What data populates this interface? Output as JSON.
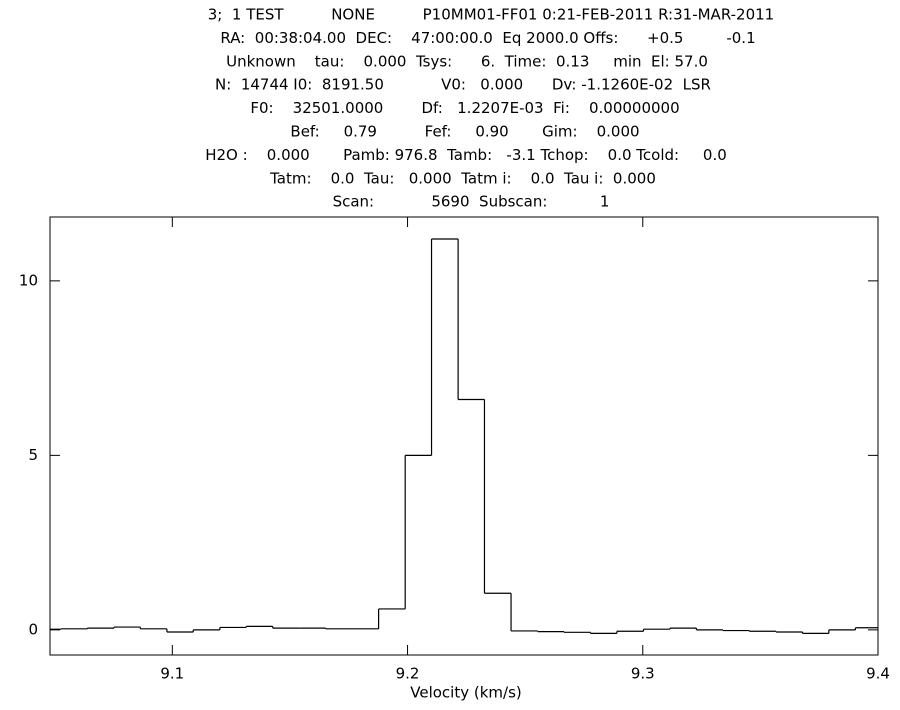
{
  "chart_data": {
    "type": "histogram",
    "annotations": [
      "3;  1 TEST          NONE          P10MM01-FF01 0:21-FEB-2011 R:31-MAR-2011",
      "RA:  00:38:04.00  DEC:    47:00:00.0  Eq 2000.0 Offs:      +0.5         -0.1",
      "Unknown    tau:    0.000  Tsys:      6.  Time:  0.13     min  El: 57.0",
      "N:  14744 I0:  8191.50            V0:   0.000      Dv: -1.1260E-02  LSR",
      "F0:    32501.0000        Df:   1.2207E-03  Fi:    0.00000000",
      "Bef:     0.79          Fef:     0.90       Gim:    0.000",
      "H2O :    0.000       Pamb: 976.8  Tamb:   -3.1 Tchop:    0.0 Tcold:     0.0",
      "Tatm:    0.0  Tau:   0.000  Tatm i:    0.0  Tau i:  0.000",
      "Scan:            5690  Subscan:           1"
    ],
    "x_label": "Velocity (km/s)",
    "bins": [
      9.0414,
      9.0527,
      9.0639,
      9.0752,
      9.0864,
      9.0977,
      9.1089,
      9.1202,
      9.1314,
      9.1427,
      9.1539,
      9.1652,
      9.1764,
      9.1877,
      9.199,
      9.2102,
      9.2215,
      9.2327,
      9.244,
      9.2553,
      9.2665,
      9.2778,
      9.289,
      9.3003,
      9.3116,
      9.3228,
      9.3341,
      9.3453,
      9.3566,
      9.3679,
      9.3791,
      9.3904,
      9.4016
    ],
    "values": [
      0.02,
      0.03,
      0.05,
      0.08,
      0.03,
      -0.06,
      0.0,
      0.07,
      0.1,
      0.05,
      0.05,
      0.03,
      0.03,
      0.6,
      5.0,
      11.2,
      6.6,
      1.05,
      -0.03,
      -0.05,
      -0.07,
      -0.1,
      -0.04,
      0.02,
      0.05,
      0.0,
      -0.02,
      -0.04,
      -0.06,
      -0.1,
      0.0,
      0.06
    ],
    "color": "#000000",
    "xlim": [
      9.048,
      9.4
    ],
    "ylim": [
      -0.72,
      11.83
    ],
    "xticks": [
      9.1,
      9.2,
      9.3,
      9.4
    ],
    "yticks": [
      0,
      5,
      10
    ]
  }
}
